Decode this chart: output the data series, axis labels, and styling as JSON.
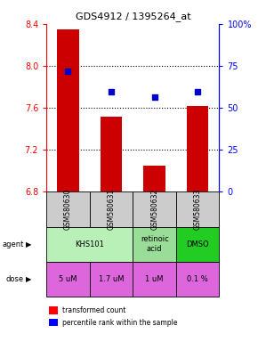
{
  "title": "GDS4912 / 1395264_at",
  "samples": [
    "GSM580630",
    "GSM580631",
    "GSM580632",
    "GSM580633"
  ],
  "bar_values": [
    8.35,
    7.52,
    7.05,
    7.62
  ],
  "bar_color": "#cc0000",
  "bar_base": 6.8,
  "percentile_values": [
    7.95,
    7.75,
    7.7,
    7.75
  ],
  "percentile_color": "#0000cc",
  "ylim_left": [
    6.8,
    8.4
  ],
  "yticks_left": [
    6.8,
    7.2,
    7.6,
    8.0,
    8.4
  ],
  "ylim_right": [
    0,
    100
  ],
  "yticks_right": [
    0,
    25,
    50,
    75,
    100
  ],
  "ytick_labels_right": [
    "0",
    "25",
    "50",
    "75",
    "100%"
  ],
  "doses": [
    "5 uM",
    "1.7 uM",
    "1 uM",
    "0.1 %"
  ],
  "sample_row_color": "#cccccc",
  "agent_khs_color": "#b8f0b8",
  "agent_retinoic_color": "#99dd99",
  "agent_dmso_color": "#22cc22",
  "dose_color": "#dd66dd",
  "dotted_yticks": [
    7.2,
    7.6,
    8.0
  ]
}
